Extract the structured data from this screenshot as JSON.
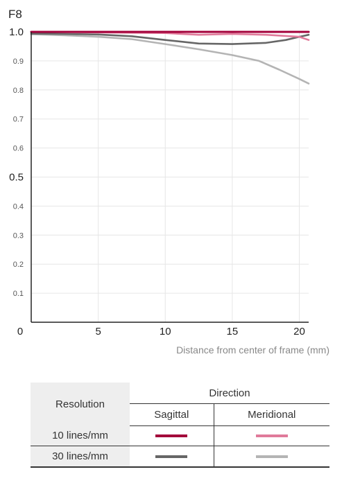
{
  "chart_data": {
    "type": "line",
    "title": "F8",
    "xlabel": "Distance from center of frame (mm)",
    "ylabel": "",
    "xlim": [
      0,
      20.7
    ],
    "ylim": [
      0,
      1.0
    ],
    "xticks": [
      {
        "v": 0,
        "label": "0"
      },
      {
        "v": 5,
        "label": "5"
      },
      {
        "v": 10,
        "label": "10"
      },
      {
        "v": 15,
        "label": "15"
      },
      {
        "v": 20,
        "label": "20"
      }
    ],
    "yticks": [
      {
        "v": 1.0,
        "label": "1.0",
        "major": true
      },
      {
        "v": 0.9,
        "label": "0.9",
        "major": false
      },
      {
        "v": 0.8,
        "label": "0.8",
        "major": false
      },
      {
        "v": 0.7,
        "label": "0.7",
        "major": false
      },
      {
        "v": 0.6,
        "label": "0.6",
        "major": false
      },
      {
        "v": 0.5,
        "label": "0.5",
        "major": true
      },
      {
        "v": 0.4,
        "label": "0.4",
        "major": false
      },
      {
        "v": 0.3,
        "label": "0.3",
        "major": false
      },
      {
        "v": 0.2,
        "label": "0.2",
        "major": false
      },
      {
        "v": 0.1,
        "label": "0.1",
        "major": false
      }
    ],
    "grid": true,
    "series": [
      {
        "key": "s10",
        "color": "#a3003a",
        "x": [
          0,
          5,
          10,
          15,
          20,
          20.7
        ],
        "y": [
          1.0,
          1.0,
          1.0,
          1.0,
          1.0,
          1.0
        ]
      },
      {
        "key": "m10",
        "color": "#e07a9a",
        "x": [
          0,
          5,
          10,
          12.5,
          15,
          17.5,
          20,
          20.7
        ],
        "y": [
          1.0,
          0.998,
          0.996,
          0.99,
          0.993,
          0.99,
          0.983,
          0.972
        ]
      },
      {
        "key": "s30",
        "color": "#666666",
        "x": [
          0,
          2.5,
          5,
          7.5,
          10,
          12.5,
          15,
          17.5,
          19,
          20,
          20.7
        ],
        "y": [
          0.994,
          0.993,
          0.991,
          0.985,
          0.972,
          0.96,
          0.958,
          0.962,
          0.972,
          0.983,
          0.99
        ]
      },
      {
        "key": "m30",
        "color": "#b4b4b4",
        "x": [
          0,
          2.5,
          5,
          7.5,
          10,
          12.5,
          15,
          17,
          18.5,
          20,
          20.7
        ],
        "y": [
          0.992,
          0.988,
          0.983,
          0.975,
          0.958,
          0.94,
          0.92,
          0.9,
          0.87,
          0.838,
          0.822
        ]
      }
    ]
  },
  "legend": {
    "resolution_header": "Resolution",
    "direction_header": "Direction",
    "sagittal": "Sagittal",
    "meridional": "Meridional",
    "rows": [
      {
        "label": "10 lines/mm",
        "sagittal_color": "#a3003a",
        "meridional_color": "#e07a9a"
      },
      {
        "label": "30 lines/mm",
        "sagittal_color": "#666666",
        "meridional_color": "#b4b4b4"
      }
    ]
  }
}
